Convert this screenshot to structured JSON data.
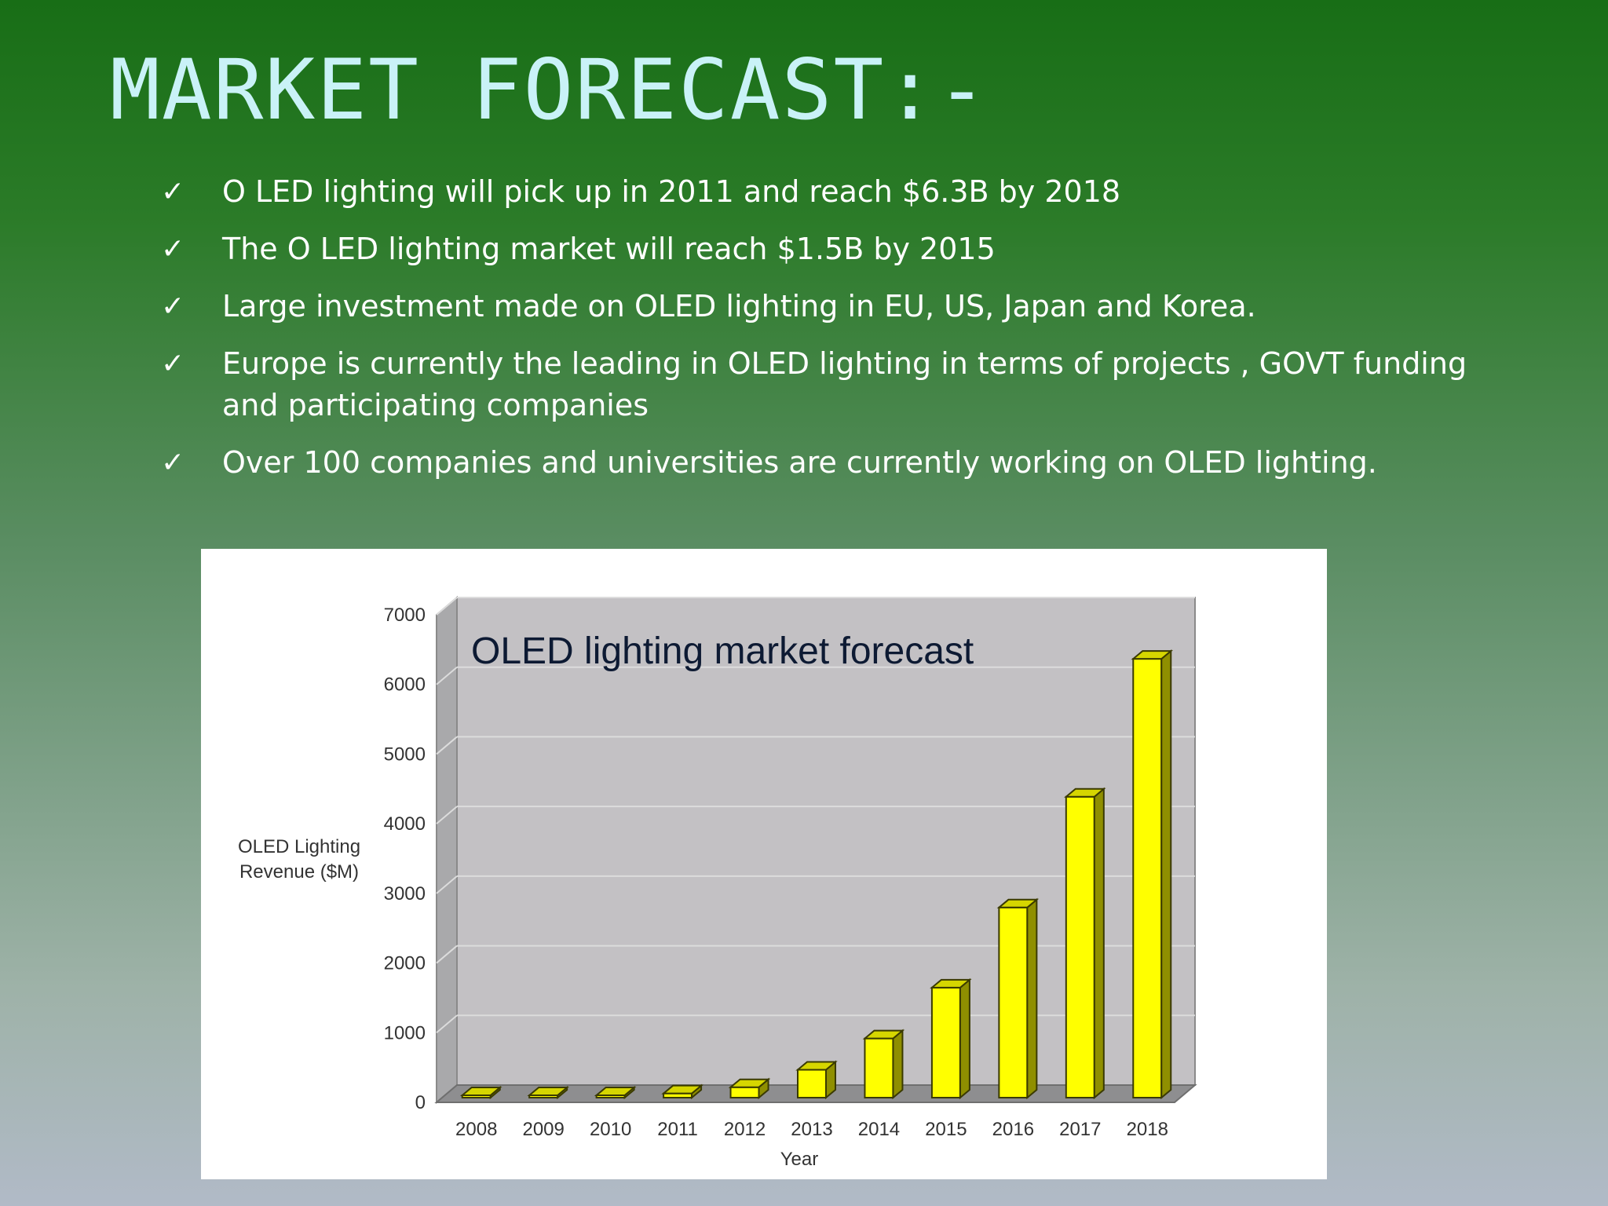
{
  "slide": {
    "title": "MARKET FORECAST:-",
    "bullets": [
      "O LED lighting will pick up in 2011 and reach $6.3B by 2018",
      "The O LED lighting market will reach $1.5B by 2015",
      "Large investment made on OLED  lighting in EU, US, Japan and Korea.",
      "Europe is currently the leading in OLED lighting  in terms of projects , GOVT funding and participating companies",
      "Over 100 companies and universities  are currently working on OLED lighting."
    ],
    "check_glyph": "✓"
  },
  "chart_data": {
    "type": "bar",
    "title": "OLED lighting market forecast",
    "xlabel": "Year",
    "ylabel": "OLED Lighting Revenue ($M)",
    "ylabel_lines": [
      "OLED Lighting",
      "Revenue ($M)"
    ],
    "categories": [
      "2008",
      "2009",
      "2010",
      "2011",
      "2012",
      "2013",
      "2014",
      "2015",
      "2016",
      "2017",
      "2018"
    ],
    "values": [
      20,
      25,
      30,
      60,
      150,
      400,
      850,
      1580,
      2730,
      4320,
      6300
    ],
    "ylim": [
      0,
      7000
    ],
    "yticks": [
      0,
      1000,
      2000,
      3000,
      4000,
      5000,
      6000,
      7000
    ],
    "grid": true,
    "style": "3d",
    "colors": {
      "bar": "#ffff00",
      "bar_top": "#d6d600",
      "bar_side": "#8f8f00",
      "bar_outline": "#3a3a00",
      "plot_back": "#c3c1c4",
      "plot_floor": "#8e8e90",
      "plot_wall": "#a9a9ab",
      "gridline": "#dcdcdc"
    }
  }
}
